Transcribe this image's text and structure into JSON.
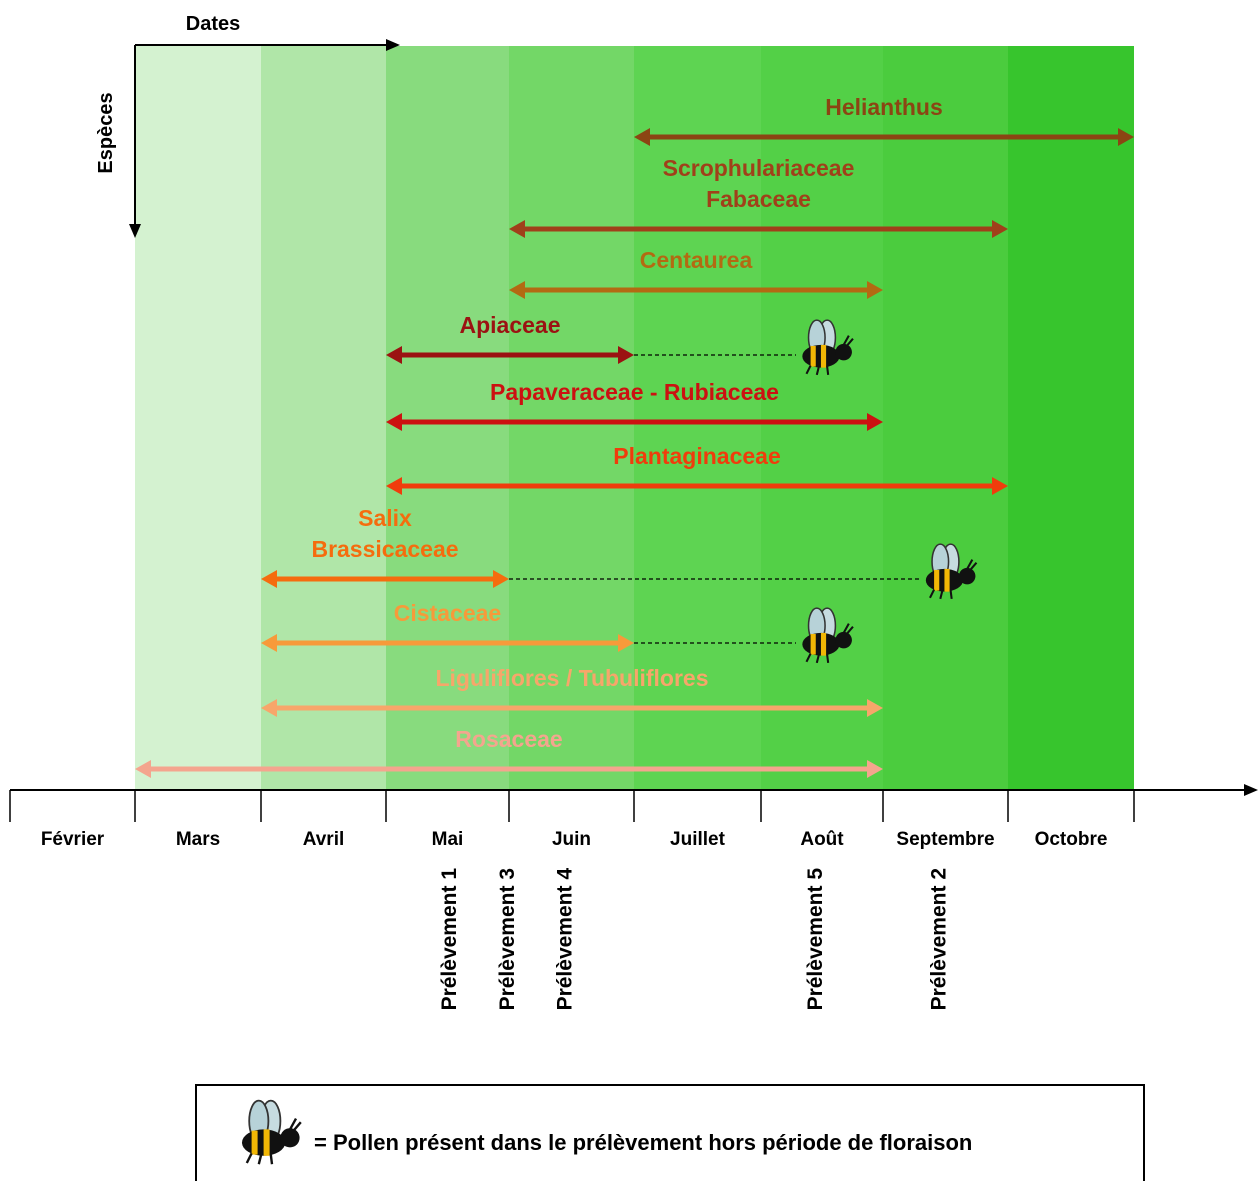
{
  "axis_labels": {
    "dates": "Dates",
    "species": "Espèces"
  },
  "months": [
    "Février",
    "Mars",
    "Avril",
    "Mai",
    "Juin",
    "Juillet",
    "Août",
    "Septembre",
    "Octobre"
  ],
  "bands": [
    {
      "month": "Mars",
      "color": "#d4f2d0"
    },
    {
      "month": "Avril",
      "color": "#b0e6a8"
    },
    {
      "month": "Mai",
      "color": "#88db7e"
    },
    {
      "month": "Juin",
      "color": "#73d767"
    },
    {
      "month": "Juillet",
      "color": "#5ed452"
    },
    {
      "month": "Août",
      "color": "#53d047"
    },
    {
      "month": "Septembre",
      "color": "#4bcc3e"
    },
    {
      "month": "Octobre",
      "color": "#37c52d"
    }
  ],
  "species": [
    {
      "label": [
        "Helianthus"
      ],
      "start": "Juillet",
      "end": "Octobre",
      "color": "#8b4513",
      "bee_until": null
    },
    {
      "label": [
        "Scrophulariaceae",
        "Fabaceae"
      ],
      "start": "Juin",
      "end": "Septembre",
      "color": "#a0401a",
      "bee_until": null
    },
    {
      "label": [
        "Centaurea"
      ],
      "start": "Juin",
      "end": "Août",
      "color": "#b36a12",
      "bee_until": null
    },
    {
      "label": [
        "Apiaceae"
      ],
      "start": "Mai",
      "end": "Juin",
      "color": "#9b1212",
      "bee_until": "Août"
    },
    {
      "label": [
        "Papaveraceae - Rubiaceae"
      ],
      "start": "Mai",
      "end": "Août",
      "color": "#cc1111",
      "bee_until": null
    },
    {
      "label": [
        "Plantaginaceae"
      ],
      "start": "Mai",
      "end": "Septembre",
      "color": "#f03c0c",
      "bee_until": null
    },
    {
      "label": [
        "Salix",
        "Brassicaceae"
      ],
      "start": "Avril",
      "end": "Mai",
      "color": "#f56c0e",
      "bee_until": "Septembre"
    },
    {
      "label": [
        "Cistaceae"
      ],
      "start": "Avril",
      "end": "Juin",
      "color": "#f79a3a",
      "bee_until": "Août"
    },
    {
      "label": [
        "Liguliflores / Tubuliflores"
      ],
      "start": "Avril",
      "end": "Août",
      "color": "#f7a66a",
      "bee_until": null
    },
    {
      "label": [
        "Rosaceae"
      ],
      "start": "Mars",
      "end": "Août",
      "color": "#f4a58e",
      "bee_until": null
    }
  ],
  "samples": [
    {
      "label": "Prélèvement 1",
      "month": "Mai",
      "position": "start"
    },
    {
      "label": "Prélèvement 3",
      "month": "Juin",
      "position": "start"
    },
    {
      "label": "Prélèvement 4",
      "month": "Juin",
      "position": "middle"
    },
    {
      "label": "Prélèvement 5",
      "month": "Août",
      "position": "middle"
    },
    {
      "label": "Prélèvement 2",
      "month": "Septembre",
      "position": "middle"
    }
  ],
  "legend": {
    "text": "= Pollen présent dans le prélèvement hors période de floraison",
    "icon": "bee-icon"
  }
}
